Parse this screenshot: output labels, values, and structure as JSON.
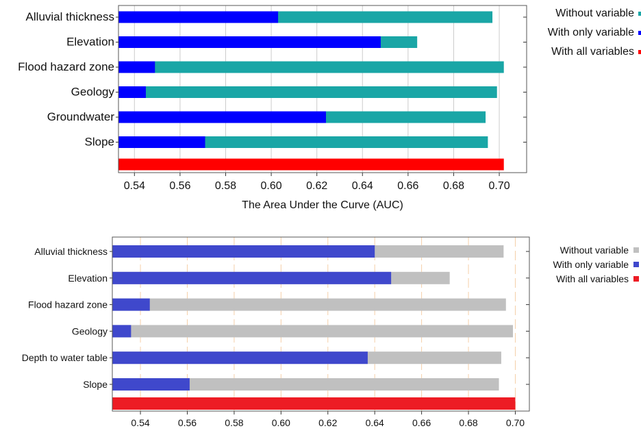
{
  "chart_data": [
    {
      "type": "bar",
      "orientation": "horizontal",
      "categories": [
        "Alluvial thickness",
        "Elevation",
        "Flood hazard zone",
        "Geology",
        "Groundwater",
        "Slope"
      ],
      "series": [
        {
          "name": "Without variable",
          "color": "#1aa6a6",
          "values": [
            0.697,
            0.664,
            0.702,
            0.699,
            0.694,
            0.695
          ]
        },
        {
          "name": "With only variable",
          "color": "#0000ff",
          "values": [
            0.603,
            0.648,
            0.549,
            0.545,
            0.624,
            0.571
          ]
        }
      ],
      "all_variables": {
        "name": "With all variables",
        "color": "#ff0000",
        "value": 0.702
      },
      "xlabel": "The Area Under the Curve (AUC)",
      "xlim": [
        0.533,
        0.712
      ],
      "xticks": [
        "0.54",
        "0.56",
        "0.58",
        "0.60",
        "0.62",
        "0.64",
        "0.66",
        "0.68",
        "0.70"
      ],
      "grid": "vertical",
      "grid_color": "#cccccc",
      "legend_position": "right"
    },
    {
      "type": "bar",
      "orientation": "horizontal",
      "categories": [
        "Alluvial thickness",
        "Elevation",
        "Flood hazard zone",
        "Geology",
        "Depth to water table",
        "Slope"
      ],
      "series": [
        {
          "name": "Without variable",
          "color": "#c0c0c0",
          "values": [
            0.695,
            0.672,
            0.696,
            0.699,
            0.694,
            0.693
          ]
        },
        {
          "name": "With only variable",
          "color": "#3f48cc",
          "values": [
            0.64,
            0.647,
            0.544,
            0.536,
            0.637,
            0.561
          ]
        }
      ],
      "all_variables": {
        "name": "With all variables",
        "color": "#ed1c24",
        "value": 0.7
      },
      "xlabel": "",
      "xlim": [
        0.528,
        0.706
      ],
      "xticks": [
        "0.54",
        "0.56",
        "0.58",
        "0.60",
        "0.62",
        "0.64",
        "0.66",
        "0.68",
        "0.70"
      ],
      "grid": "vertical",
      "grid_color": "#f5cfa8",
      "legend_position": "right"
    }
  ]
}
